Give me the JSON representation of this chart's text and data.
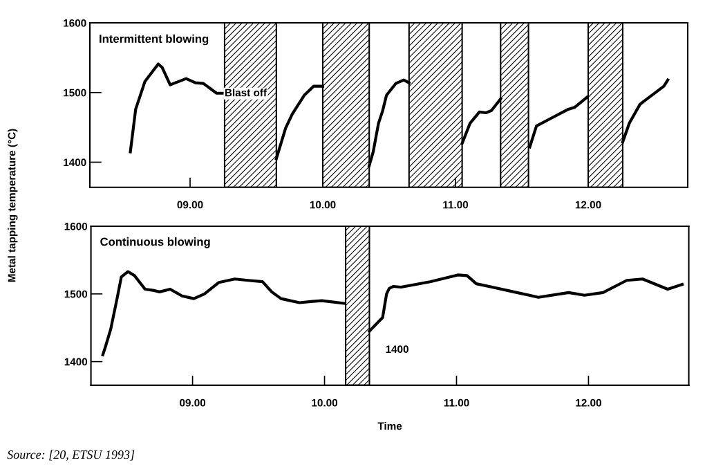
{
  "chart_data": [
    {
      "type": "line",
      "title": "Intermittent blowing",
      "ylabel": "Metal tapping temperature (°C)",
      "xlim": [
        8.245,
        12.75
      ],
      "ylim": [
        1364,
        1600
      ],
      "xticks": [
        {
          "value": 9,
          "label": "09.00"
        },
        {
          "value": 10,
          "label": "10.00"
        },
        {
          "value": 11,
          "label": "11.00"
        },
        {
          "value": 12,
          "label": "12.00"
        }
      ],
      "yticks": [
        1400,
        1500,
        1600
      ],
      "grid": false,
      "legend": false,
      "tick_labels": "xy",
      "bands": [
        {
          "axis": "x",
          "from": 9.26,
          "to": 9.65
        },
        {
          "axis": "x",
          "from": 10.0,
          "to": 10.35
        },
        {
          "axis": "x",
          "from": 10.65,
          "to": 11.05
        },
        {
          "axis": "x",
          "from": 11.34,
          "to": 11.55
        },
        {
          "axis": "x",
          "from": 12.0,
          "to": 12.26
        }
      ],
      "annotations": [
        "Blast off"
      ],
      "series": [
        {
          "color": "#000000",
          "x": [
            8.55,
            8.59,
            8.66,
            8.76,
            8.79,
            8.85,
            8.97,
            9.04,
            9.1,
            9.2,
            9.25
          ],
          "values": [
            1415,
            1476,
            1516,
            1541,
            1536,
            1511,
            1520,
            1514,
            1513,
            1499,
            1499
          ]
        },
        {
          "color": "#000000",
          "x": [
            9.65,
            9.72,
            9.77,
            9.86,
            9.93,
            10.0
          ],
          "values": [
            1405,
            1449,
            1469,
            1496,
            1509,
            1509
          ]
        },
        {
          "color": "#000000",
          "x": [
            10.35,
            10.38,
            10.42,
            10.45,
            10.48,
            10.55,
            10.61,
            10.65
          ],
          "values": [
            1395,
            1415,
            1456,
            1473,
            1496,
            1513,
            1518,
            1514
          ]
        },
        {
          "color": "#000000",
          "x": [
            11.05,
            11.11,
            11.18,
            11.23,
            11.27,
            11.34
          ],
          "values": [
            1427,
            1456,
            1472,
            1471,
            1474,
            1491
          ]
        },
        {
          "color": "#000000",
          "x": [
            11.56,
            11.61,
            11.7,
            11.85,
            11.9,
            11.99
          ],
          "values": [
            1422,
            1452,
            1461,
            1476,
            1479,
            1493
          ]
        },
        {
          "color": "#000000",
          "x": [
            12.26,
            12.31,
            12.39,
            12.43,
            12.57,
            12.6
          ],
          "values": [
            1429,
            1456,
            1483,
            1489,
            1509,
            1518
          ]
        }
      ]
    },
    {
      "type": "line",
      "title": "Continuous blowing",
      "xlabel": "Time",
      "xlim": [
        8.23,
        12.76
      ],
      "ylim": [
        1365,
        1600
      ],
      "xticks": [
        {
          "value": 9,
          "label": "09.00"
        },
        {
          "value": 10,
          "label": "10.00"
        },
        {
          "value": 11,
          "label": "11.00"
        },
        {
          "value": 12,
          "label": "12.00"
        }
      ],
      "yticks": [
        1400,
        1500,
        1600
      ],
      "grid": false,
      "legend": false,
      "bands": [
        {
          "axis": "x",
          "from": 10.16,
          "to": 10.34
        }
      ],
      "annotations": [
        {
          "text": "1400",
          "x": 10.55,
          "y": 1417
        },
        "Source: [20, ETSU 1993]"
      ],
      "series": [
        {
          "color": "#000000",
          "x": [
            8.32,
            8.34,
            8.38,
            8.43,
            8.46,
            8.51,
            8.56,
            8.64,
            8.71,
            8.75,
            8.83,
            8.92,
            9.01,
            9.09,
            9.2,
            9.32,
            9.42,
            9.53,
            9.6,
            9.67,
            9.81,
            9.91,
            9.98,
            10.15
          ],
          "values": [
            1410,
            1422,
            1448,
            1495,
            1525,
            1533,
            1527,
            1507,
            1505,
            1503,
            1507,
            1497,
            1493,
            1500,
            1517,
            1522,
            1520,
            1518,
            1503,
            1493,
            1487,
            1489,
            1490,
            1486
          ]
        },
        {
          "color": "#000000",
          "x": [
            10.34,
            10.44,
            10.47,
            10.49,
            10.52,
            10.58,
            10.8,
            11.01,
            11.08,
            11.15,
            11.27,
            11.41,
            11.62,
            11.85,
            11.97,
            12.11,
            12.29,
            12.41,
            12.6,
            12.71
          ],
          "values": [
            1445,
            1465,
            1500,
            1508,
            1511,
            1510,
            1518,
            1528,
            1527,
            1515,
            1510,
            1504,
            1495,
            1502,
            1498,
            1502,
            1520,
            1522,
            1507,
            1514
          ]
        }
      ]
    }
  ]
}
